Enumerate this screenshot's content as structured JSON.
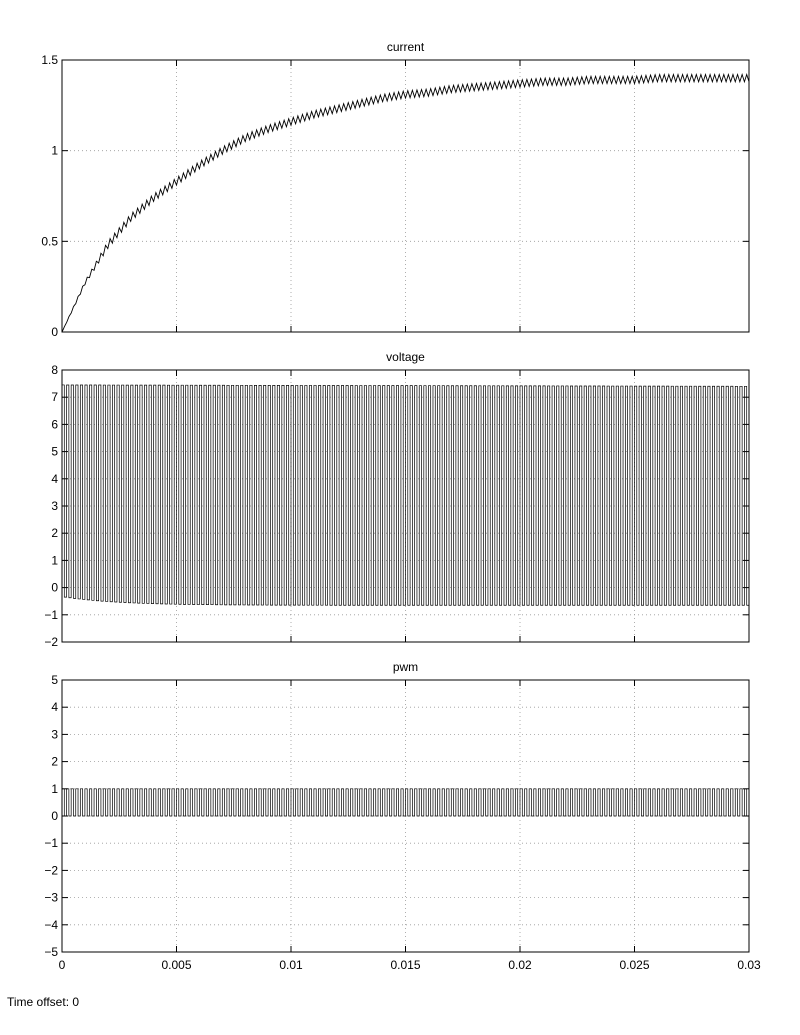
{
  "footer": {
    "time_offset_label": "Time offset: 0"
  },
  "chart_data": [
    {
      "type": "line",
      "title": "current",
      "xlabel": "",
      "ylabel": "",
      "xlim": [
        0,
        0.03
      ],
      "ylim": [
        0,
        1.5
      ],
      "xticks": [
        0,
        0.005,
        0.01,
        0.015,
        0.02,
        0.025,
        0.03
      ],
      "yticks": [
        0,
        0.5,
        1,
        1.5
      ],
      "ytick_labels": [
        "0",
        "0.5",
        "1",
        "1.5"
      ],
      "show_xtick_labels": false,
      "grid": true,
      "series": [
        {
          "x": [
            0,
            0.001,
            0.002,
            0.003,
            0.004,
            0.005,
            0.006,
            0.007,
            0.008,
            0.009,
            0.01,
            0.011,
            0.012,
            0.013,
            0.014,
            0.015,
            0.016,
            0.017,
            0.018,
            0.019,
            0.02,
            0.021,
            0.022,
            0.023,
            0.024,
            0.025,
            0.026,
            0.027,
            0.028,
            0.029,
            0.03
          ],
          "y": [
            0,
            0.27,
            0.48,
            0.63,
            0.74,
            0.83,
            0.92,
            1.0,
            1.07,
            1.12,
            1.16,
            1.2,
            1.23,
            1.26,
            1.29,
            1.31,
            1.32,
            1.34,
            1.35,
            1.36,
            1.37,
            1.38,
            1.38,
            1.39,
            1.39,
            1.39,
            1.4,
            1.4,
            1.4,
            1.4,
            1.4
          ]
        }
      ],
      "ripple": {
        "amplitude": 0.04,
        "cycles": 150
      }
    },
    {
      "type": "line",
      "title": "voltage",
      "xlabel": "",
      "ylabel": "",
      "xlim": [
        0,
        0.03
      ],
      "ylim": [
        -2,
        8
      ],
      "xticks": [
        0,
        0.005,
        0.01,
        0.015,
        0.02,
        0.025,
        0.03
      ],
      "yticks": [
        -2,
        -1,
        0,
        1,
        2,
        3,
        4,
        5,
        6,
        7,
        8
      ],
      "ytick_labels": [
        "−2",
        "−1",
        "0",
        "1",
        "2",
        "3",
        "4",
        "5",
        "6",
        "7",
        "8"
      ],
      "show_xtick_labels": false,
      "grid": true,
      "square_wave": {
        "high": 7.45,
        "high_end": 7.4,
        "low_start": -0.35,
        "low_end": -0.65,
        "cycles": 150
      }
    },
    {
      "type": "line",
      "title": "pwm",
      "xlabel": "",
      "ylabel": "",
      "xlim": [
        0,
        0.03
      ],
      "ylim": [
        -5,
        5
      ],
      "xticks": [
        0,
        0.005,
        0.01,
        0.015,
        0.02,
        0.025,
        0.03
      ],
      "xtick_labels": [
        "0",
        "0.005",
        "0.01",
        "0.015",
        "0.02",
        "0.025",
        "0.03"
      ],
      "yticks": [
        -5,
        -4,
        -3,
        -2,
        -1,
        0,
        1,
        2,
        3,
        4,
        5
      ],
      "ytick_labels": [
        "−5",
        "−4",
        "−3",
        "−2",
        "−1",
        "0",
        "1",
        "2",
        "3",
        "4",
        "5"
      ],
      "show_xtick_labels": true,
      "grid": true,
      "square_wave": {
        "high": 1,
        "high_end": 1,
        "low_start": 0,
        "low_end": 0,
        "cycles": 150
      }
    }
  ]
}
